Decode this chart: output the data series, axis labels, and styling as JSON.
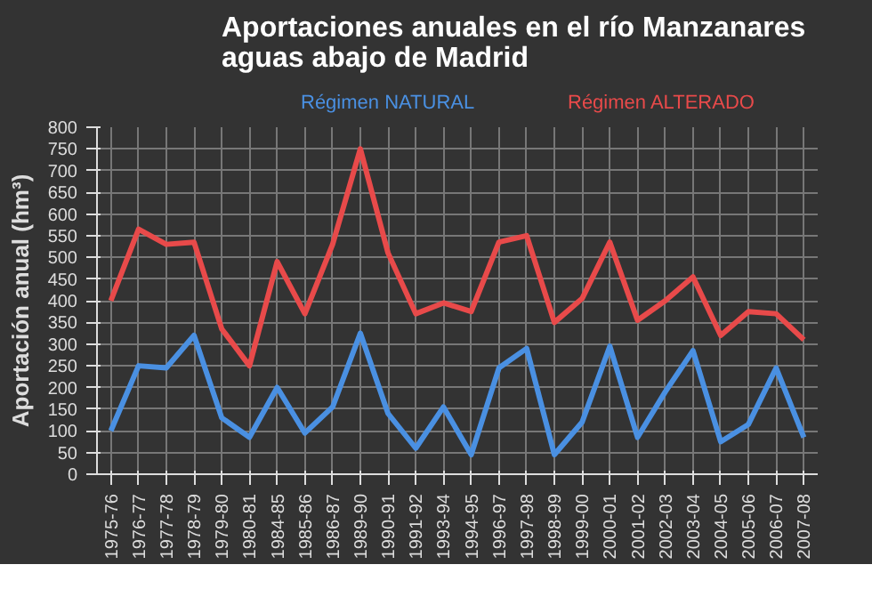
{
  "chart_data": {
    "type": "line",
    "title": "Aportaciones anuales en el río Manzanares\naguas abajo de Madrid",
    "ylabel": "Aportación anual (hm³)",
    "categories": [
      "1975-76",
      "1976-77",
      "1977-78",
      "1978-79",
      "1979-80",
      "1980-81",
      "1984-85",
      "1985-86",
      "1986-87",
      "1989-90",
      "1990-91",
      "1991-92",
      "1993-94",
      "1994-95",
      "1996-97",
      "1997-98",
      "1998-99",
      "1999-00",
      "2000-01",
      "2001-02",
      "2002-03",
      "2003-04",
      "2004-05",
      "2005-06",
      "2006-07",
      "2007-08"
    ],
    "series": [
      {
        "name": "Régimen NATURAL",
        "color": "#4a90e2",
        "values": [
          100,
          250,
          245,
          320,
          130,
          85,
          200,
          95,
          155,
          325,
          140,
          60,
          155,
          45,
          245,
          290,
          45,
          120,
          295,
          85,
          190,
          285,
          75,
          115,
          245,
          85
        ]
      },
      {
        "name": "Régimen ALTERADO",
        "color": "#e84a4a",
        "values": [
          400,
          565,
          530,
          535,
          335,
          250,
          490,
          370,
          530,
          750,
          510,
          370,
          395,
          375,
          535,
          550,
          350,
          405,
          535,
          355,
          400,
          455,
          320,
          375,
          370,
          310
        ]
      }
    ],
    "ylim": [
      0,
      800
    ],
    "yticks": [
      0,
      50,
      100,
      150,
      200,
      250,
      300,
      350,
      400,
      450,
      500,
      550,
      600,
      650,
      700,
      750,
      800
    ],
    "grid": true,
    "legend": "top",
    "marker": "none",
    "line_style": "solid"
  }
}
